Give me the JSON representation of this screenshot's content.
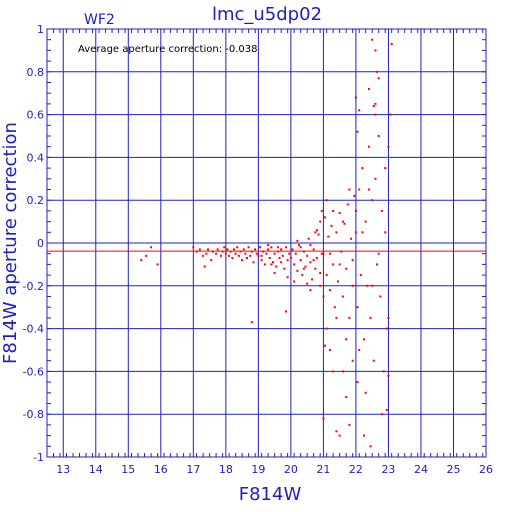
{
  "chart_data": {
    "type": "scatter",
    "title": "lmc_u5dp02",
    "chip_label": "WF2",
    "annotation": "Average aperture correction: -0.038",
    "xlabel": "F814W",
    "ylabel": "F814W aperture correction",
    "xlim": [
      12.5,
      26
    ],
    "ylim": [
      -1,
      1
    ],
    "x_ticks": [
      13,
      14,
      15,
      16,
      17,
      18,
      19,
      20,
      21,
      22,
      23,
      24,
      25,
      26
    ],
    "y_ticks": [
      -1,
      -0.8,
      -0.6,
      -0.4,
      -0.2,
      0,
      0.2,
      0.4,
      0.6,
      0.8,
      1
    ],
    "y_tick_labels": [
      "-1",
      "-0.8",
      "-0.6",
      "-0.4",
      "-0.2",
      "0",
      "0.2",
      "0.4",
      "0.6",
      "0.8",
      "1"
    ],
    "grid": true,
    "reference_line": -0.038,
    "colors": {
      "axes": "#2020c0",
      "points": "#ff0000",
      "reference": "#ff0000"
    },
    "points": [
      [
        15.4,
        -0.08
      ],
      [
        15.55,
        -0.06
      ],
      [
        15.7,
        -0.02
      ],
      [
        15.9,
        -0.1
      ],
      [
        17.0,
        -0.02
      ],
      [
        17.1,
        -0.04
      ],
      [
        17.2,
        -0.03
      ],
      [
        17.3,
        -0.06
      ],
      [
        17.35,
        -0.11
      ],
      [
        17.4,
        -0.05
      ],
      [
        17.45,
        -0.03
      ],
      [
        17.55,
        -0.08
      ],
      [
        17.6,
        -0.04
      ],
      [
        17.7,
        -0.05
      ],
      [
        17.75,
        -0.03
      ],
      [
        17.85,
        -0.06
      ],
      [
        17.9,
        -0.04
      ],
      [
        17.95,
        -0.02
      ],
      [
        18.0,
        -0.05
      ],
      [
        18.05,
        -0.03
      ],
      [
        18.1,
        -0.06
      ],
      [
        18.15,
        -0.04
      ],
      [
        18.2,
        -0.07
      ],
      [
        18.25,
        -0.03
      ],
      [
        18.3,
        -0.05
      ],
      [
        18.35,
        -0.02
      ],
      [
        18.4,
        -0.06
      ],
      [
        18.45,
        -0.04
      ],
      [
        18.5,
        -0.08
      ],
      [
        18.55,
        -0.03
      ],
      [
        18.6,
        -0.05
      ],
      [
        18.65,
        -0.07
      ],
      [
        18.7,
        -0.02
      ],
      [
        18.75,
        -0.06
      ],
      [
        18.8,
        -0.04
      ],
      [
        18.85,
        -0.09
      ],
      [
        18.9,
        -0.03
      ],
      [
        18.95,
        -0.05
      ],
      [
        18.8,
        -0.37
      ],
      [
        19.0,
        -0.06
      ],
      [
        19.05,
        -0.02
      ],
      [
        19.1,
        -0.08
      ],
      [
        19.15,
        -0.04
      ],
      [
        19.2,
        -0.1
      ],
      [
        19.25,
        -0.05
      ],
      [
        19.3,
        -0.03
      ],
      [
        19.35,
        -0.07
      ],
      [
        19.4,
        -0.02
      ],
      [
        19.45,
        -0.09
      ],
      [
        19.5,
        -0.05
      ],
      [
        19.55,
        -0.11
      ],
      [
        19.6,
        -0.04
      ],
      [
        19.65,
        -0.07
      ],
      [
        19.7,
        -0.03
      ],
      [
        19.75,
        -0.06
      ],
      [
        19.8,
        -0.12
      ],
      [
        19.85,
        -0.02
      ],
      [
        19.9,
        -0.08
      ],
      [
        19.95,
        -0.05
      ],
      [
        19.1,
        -0.06
      ],
      [
        19.3,
        -0.01
      ],
      [
        19.5,
        -0.14
      ],
      [
        19.7,
        -0.09
      ],
      [
        19.9,
        -0.16
      ],
      [
        19.85,
        -0.32
      ],
      [
        19.4,
        -0.1
      ],
      [
        19.6,
        -0.02
      ],
      [
        20.0,
        -0.07
      ],
      [
        20.05,
        -0.03
      ],
      [
        20.1,
        -0.1
      ],
      [
        20.15,
        -0.05
      ],
      [
        20.2,
        -0.13
      ],
      [
        20.25,
        -0.01
      ],
      [
        20.3,
        -0.08
      ],
      [
        20.35,
        -0.15
      ],
      [
        20.4,
        -0.04
      ],
      [
        20.45,
        -0.11
      ],
      [
        20.5,
        -0.06
      ],
      [
        20.55,
        0.02
      ],
      [
        20.6,
        -0.09
      ],
      [
        20.65,
        -0.17
      ],
      [
        20.7,
        -0.03
      ],
      [
        20.75,
        -0.12
      ],
      [
        20.8,
        -0.07
      ],
      [
        20.85,
        0.04
      ],
      [
        20.9,
        -0.14
      ],
      [
        20.95,
        -0.05
      ],
      [
        20.1,
        -0.18
      ],
      [
        20.3,
        -0.02
      ],
      [
        20.5,
        -0.19
      ],
      [
        20.7,
        -0.08
      ],
      [
        20.9,
        -0.2
      ],
      [
        20.2,
        0.01
      ],
      [
        20.6,
        -0.22
      ],
      [
        20.8,
        0.06
      ],
      [
        20.4,
        -0.12
      ],
      [
        20.9,
        0.1
      ],
      [
        20.75,
        0.05
      ],
      [
        20.95,
        0.15
      ],
      [
        20.6,
        -0.01
      ],
      [
        21.0,
        -0.05
      ],
      [
        21.05,
        0.12
      ],
      [
        21.1,
        -0.15
      ],
      [
        21.15,
        0.03
      ],
      [
        21.2,
        -0.22
      ],
      [
        21.25,
        0.08
      ],
      [
        21.3,
        -0.1
      ],
      [
        21.35,
        -0.3
      ],
      [
        21.4,
        0.05
      ],
      [
        21.45,
        -0.18
      ],
      [
        21.5,
        0.14
      ],
      [
        21.55,
        -0.04
      ],
      [
        21.6,
        -0.25
      ],
      [
        21.65,
        0.09
      ],
      [
        21.7,
        -0.12
      ],
      [
        21.75,
        0.18
      ],
      [
        21.8,
        -0.35
      ],
      [
        21.85,
        0.02
      ],
      [
        21.9,
        -0.2
      ],
      [
        21.95,
        0.22
      ],
      [
        21.0,
        -0.25
      ],
      [
        21.1,
        0.2
      ],
      [
        21.2,
        -0.05
      ],
      [
        21.3,
        0.15
      ],
      [
        21.4,
        -0.35
      ],
      [
        21.5,
        -0.1
      ],
      [
        21.6,
        0.1
      ],
      [
        21.7,
        -0.45
      ],
      [
        21.8,
        0.25
      ],
      [
        21.9,
        -0.08
      ],
      [
        21.0,
        -0.82
      ],
      [
        21.05,
        -0.48
      ],
      [
        21.1,
        -0.4
      ],
      [
        21.2,
        -0.5
      ],
      [
        21.4,
        -0.88
      ],
      [
        21.5,
        -0.9
      ],
      [
        21.6,
        -0.6
      ],
      [
        21.7,
        -0.72
      ],
      [
        21.8,
        -0.85
      ],
      [
        21.9,
        -0.55
      ],
      [
        21.3,
        -0.6
      ],
      [
        22.0,
        0.05
      ],
      [
        22.05,
        -0.3
      ],
      [
        22.1,
        0.25
      ],
      [
        22.15,
        -0.15
      ],
      [
        22.2,
        0.35
      ],
      [
        22.25,
        -0.45
      ],
      [
        22.3,
        0.1
      ],
      [
        22.35,
        -0.2
      ],
      [
        22.4,
        0.45
      ],
      [
        22.45,
        -0.35
      ],
      [
        22.5,
        0.2
      ],
      [
        22.55,
        -0.55
      ],
      [
        22.6,
        0.3
      ],
      [
        22.65,
        -0.1
      ],
      [
        22.7,
        0.5
      ],
      [
        22.75,
        -0.25
      ],
      [
        22.8,
        0.15
      ],
      [
        22.85,
        -0.6
      ],
      [
        22.9,
        0.05
      ],
      [
        22.95,
        -0.4
      ],
      [
        22.0,
        0.15
      ],
      [
        22.1,
        -0.5
      ],
      [
        22.2,
        0.05
      ],
      [
        22.3,
        -0.7
      ],
      [
        22.4,
        0.25
      ],
      [
        22.5,
        -0.2
      ],
      [
        22.6,
        0.6
      ],
      [
        22.7,
        -0.05
      ],
      [
        22.8,
        -0.8
      ],
      [
        22.9,
        0.35
      ],
      [
        22.05,
        -0.65
      ],
      [
        22.25,
        -0.9
      ],
      [
        22.45,
        -0.95
      ],
      [
        22.0,
        0.68
      ],
      [
        22.05,
        0.52
      ],
      [
        22.1,
        0.62
      ],
      [
        22.5,
        0.95
      ],
      [
        22.6,
        0.9
      ],
      [
        22.55,
        0.64
      ],
      [
        22.65,
        0.8
      ],
      [
        22.7,
        0.77
      ],
      [
        22.4,
        0.72
      ],
      [
        22.6,
        0.65
      ],
      [
        23.1,
        0.93
      ],
      [
        23.05,
        0.6
      ],
      [
        23.0,
        0.45
      ],
      [
        23.0,
        -0.35
      ],
      [
        23.0,
        -0.62
      ],
      [
        22.95,
        -0.78
      ]
    ]
  }
}
